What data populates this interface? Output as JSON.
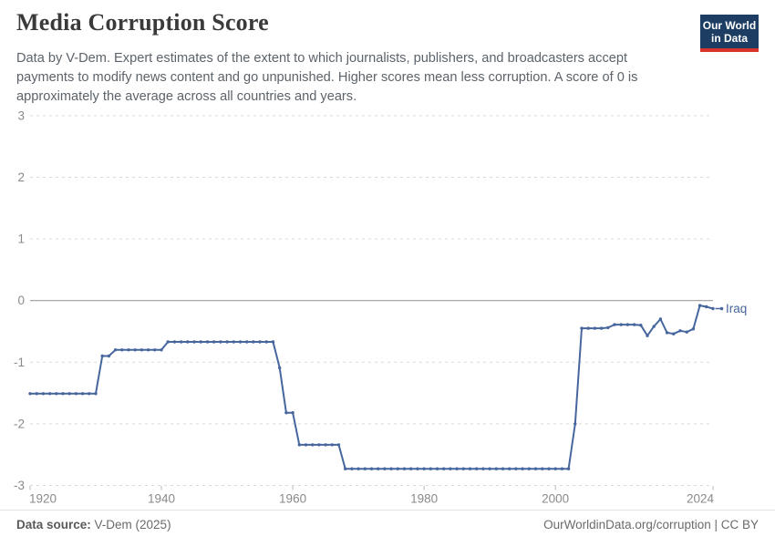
{
  "header": {
    "title": "Media Corruption Score",
    "subtitle": "Data by V-Dem. Expert estimates of the extent to which journalists, publishers, and broadcasters accept payments to modify news content and go unpunished. Higher scores mean less corruption. A score of 0 is approximately the average across all countries and years.",
    "logo": {
      "line1": "Our World",
      "line2": "in Data"
    }
  },
  "footer": {
    "source_label": "Data source:",
    "source_value": " V-Dem (2025)",
    "credit": "OurWorldinData.org/corruption | CC BY"
  },
  "colors": {
    "line": "#47669e",
    "logo_bg": "#1d3d63",
    "logo_stripe": "#d8342c",
    "grid": "#d9d9d9",
    "zero_line": "#9c9c9c",
    "axis_text": "#8a8a8a",
    "tick_mark": "#b9b9b9"
  },
  "chart_data": {
    "type": "line",
    "title": "Media Corruption Score",
    "xlabel": "",
    "ylabel": "",
    "xlim": [
      1920,
      2024
    ],
    "ylim": [
      -3,
      3
    ],
    "yticks": [
      3,
      2,
      1,
      0,
      -1,
      -2,
      -3
    ],
    "xticks": [
      1920,
      1940,
      1960,
      1980,
      2000,
      2024
    ],
    "grid": "horizontal-dashed",
    "zero_line": true,
    "legend_position": "end-of-line-label",
    "series": [
      {
        "name": "Iraq",
        "x": [
          1920,
          1921,
          1922,
          1923,
          1924,
          1925,
          1926,
          1927,
          1928,
          1929,
          1930,
          1931,
          1932,
          1933,
          1934,
          1935,
          1936,
          1937,
          1938,
          1939,
          1940,
          1941,
          1942,
          1943,
          1944,
          1945,
          1946,
          1947,
          1948,
          1949,
          1950,
          1951,
          1952,
          1953,
          1954,
          1955,
          1956,
          1957,
          1958,
          1959,
          1960,
          1961,
          1962,
          1963,
          1964,
          1965,
          1966,
          1967,
          1968,
          1969,
          1970,
          1971,
          1972,
          1973,
          1974,
          1975,
          1976,
          1977,
          1978,
          1979,
          1980,
          1981,
          1982,
          1983,
          1984,
          1985,
          1986,
          1987,
          1988,
          1989,
          1990,
          1991,
          1992,
          1993,
          1994,
          1995,
          1996,
          1997,
          1998,
          1999,
          2000,
          2001,
          2002,
          2003,
          2004,
          2005,
          2006,
          2007,
          2008,
          2009,
          2010,
          2011,
          2012,
          2013,
          2014,
          2015,
          2016,
          2017,
          2018,
          2019,
          2020,
          2021,
          2022,
          2023,
          2024
        ],
        "values": [
          -1.51,
          -1.51,
          -1.51,
          -1.51,
          -1.51,
          -1.51,
          -1.51,
          -1.51,
          -1.51,
          -1.51,
          -1.51,
          -0.9,
          -0.9,
          -0.8,
          -0.8,
          -0.8,
          -0.8,
          -0.8,
          -0.8,
          -0.8,
          -0.8,
          -0.67,
          -0.67,
          -0.67,
          -0.67,
          -0.67,
          -0.67,
          -0.67,
          -0.67,
          -0.67,
          -0.67,
          -0.67,
          -0.67,
          -0.67,
          -0.67,
          -0.67,
          -0.67,
          -0.67,
          -1.09,
          -1.82,
          -1.82,
          -2.34,
          -2.34,
          -2.34,
          -2.34,
          -2.34,
          -2.34,
          -2.34,
          -2.73,
          -2.73,
          -2.73,
          -2.73,
          -2.73,
          -2.73,
          -2.73,
          -2.73,
          -2.73,
          -2.73,
          -2.73,
          -2.73,
          -2.73,
          -2.73,
          -2.73,
          -2.73,
          -2.73,
          -2.73,
          -2.73,
          -2.73,
          -2.73,
          -2.73,
          -2.73,
          -2.73,
          -2.73,
          -2.73,
          -2.73,
          -2.73,
          -2.73,
          -2.73,
          -2.73,
          -2.73,
          -2.73,
          -2.73,
          -2.73,
          -2.0,
          -0.45,
          -0.45,
          -0.45,
          -0.45,
          -0.44,
          -0.39,
          -0.39,
          -0.39,
          -0.39,
          -0.4,
          -0.57,
          -0.42,
          -0.3,
          -0.52,
          -0.54,
          -0.49,
          -0.51,
          -0.46,
          -0.08,
          -0.1,
          -0.13
        ]
      }
    ]
  }
}
